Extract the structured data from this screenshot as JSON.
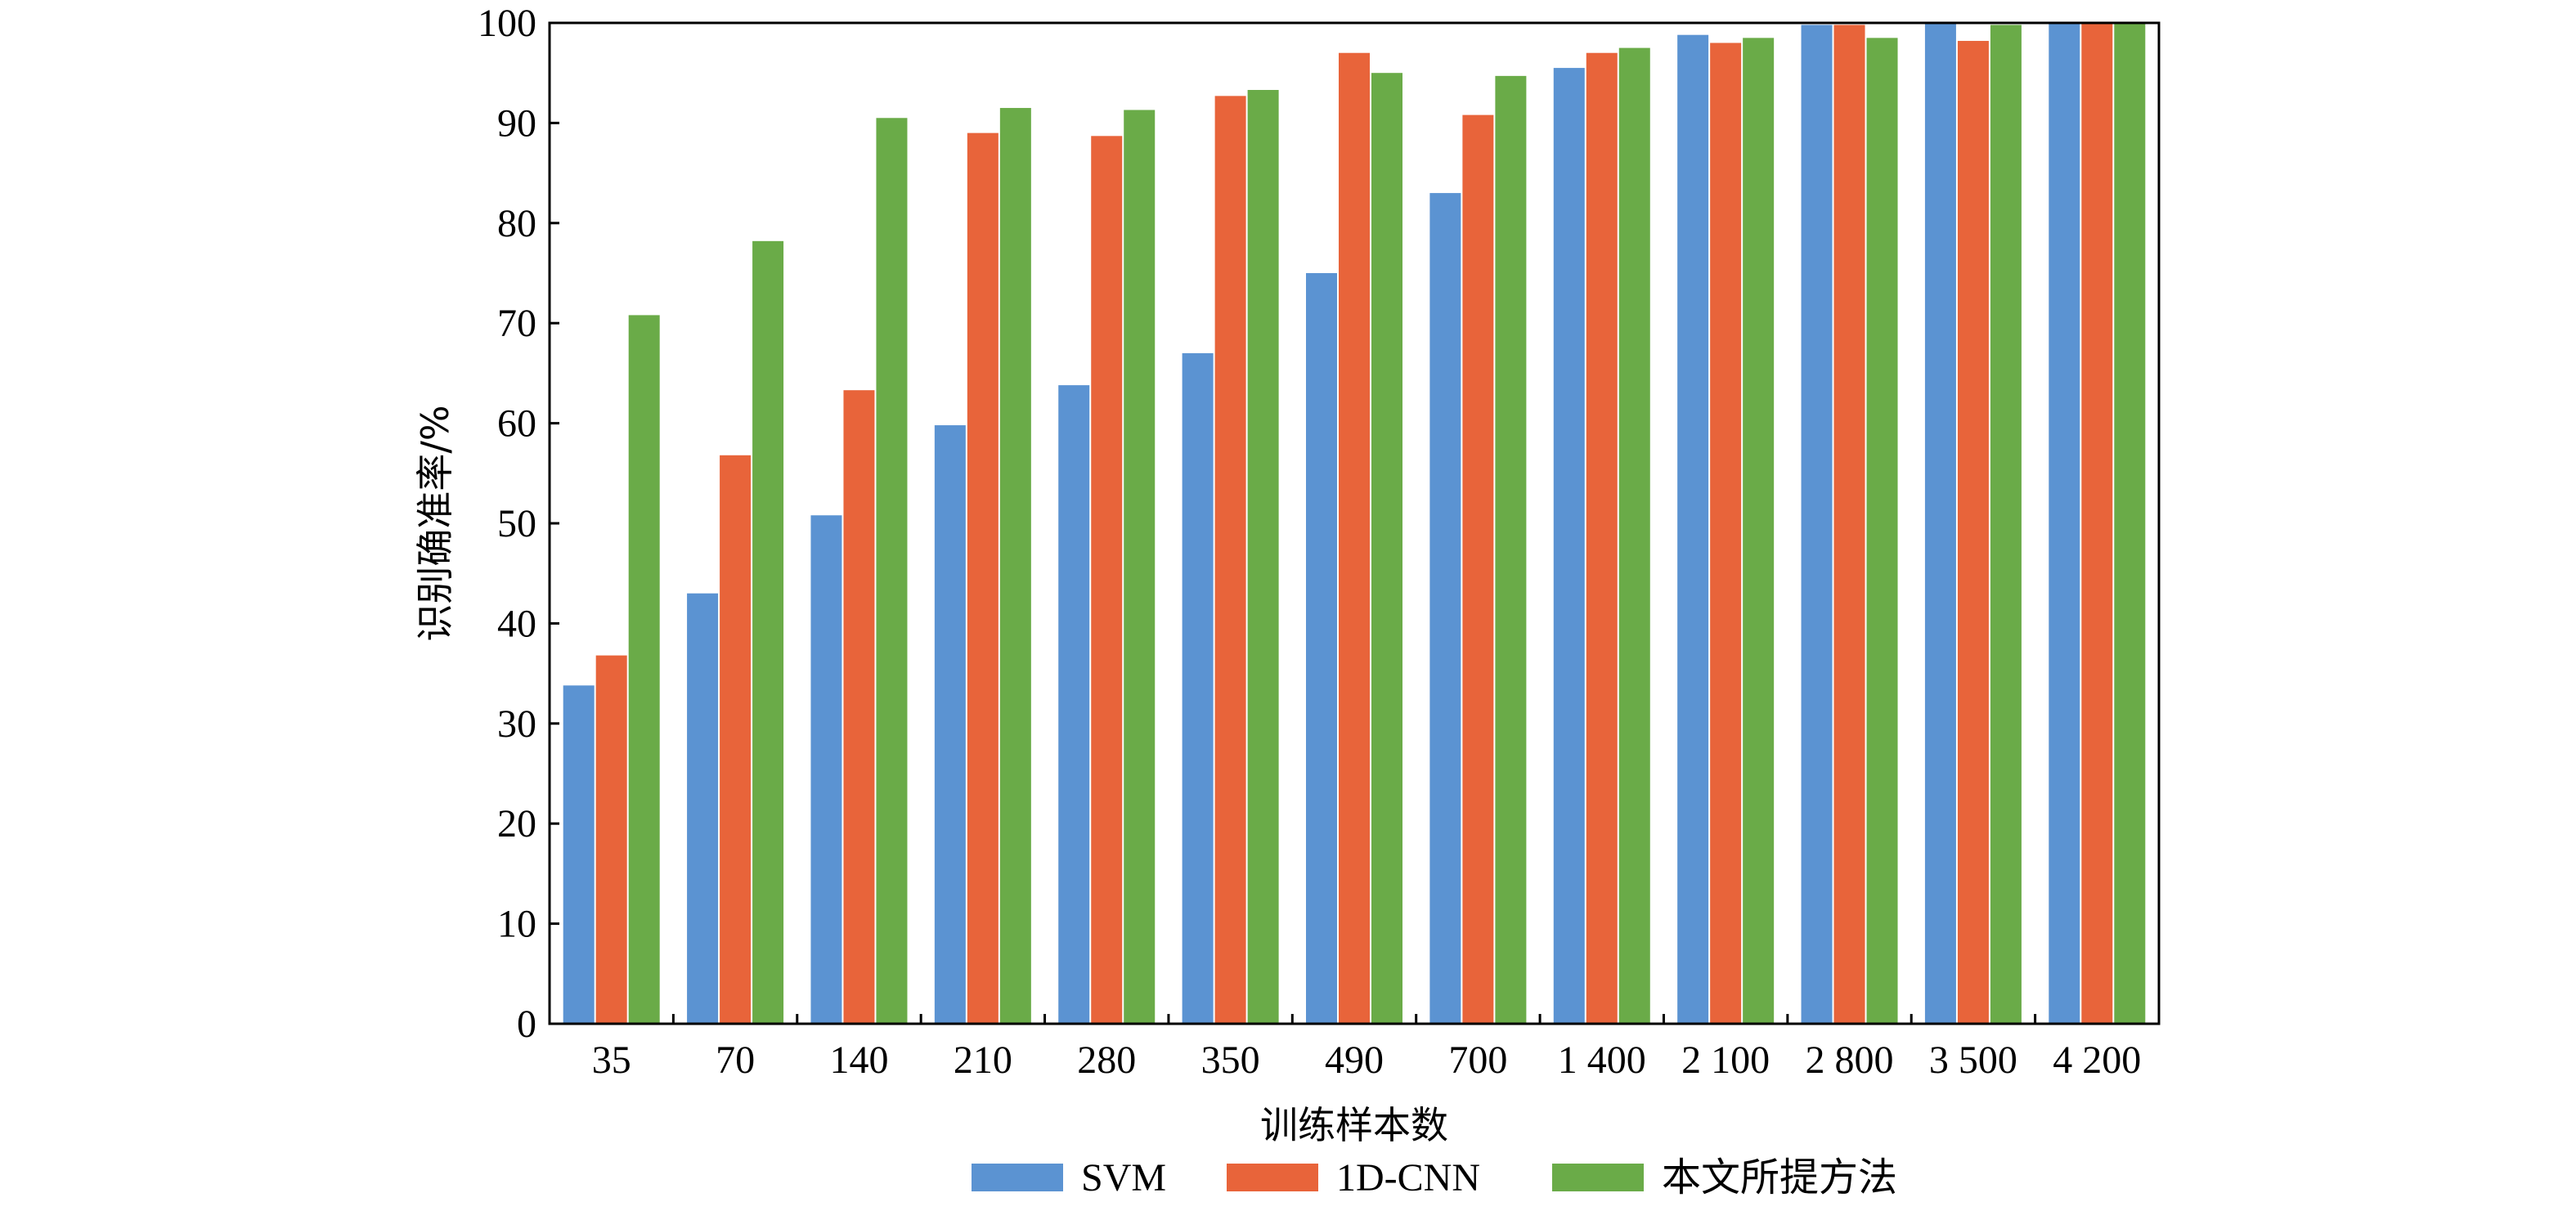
{
  "chart_data": {
    "type": "bar",
    "title": "",
    "xlabel": "训练样本数",
    "ylabel": "识别确准率/%",
    "ylim": [
      0,
      100
    ],
    "yticks": [
      0,
      10,
      20,
      30,
      40,
      50,
      60,
      70,
      80,
      90,
      100
    ],
    "grid": false,
    "legend_position": "bottom",
    "categories": [
      "35",
      "70",
      "140",
      "210",
      "280",
      "350",
      "490",
      "700",
      "1 400",
      "2 100",
      "2 800",
      "3 500",
      "4 200"
    ],
    "series": [
      {
        "name": "SVM",
        "color": "#5B93D2",
        "values": [
          33.8,
          43.0,
          50.8,
          59.8,
          63.8,
          67.0,
          75.0,
          83.0,
          95.5,
          98.8,
          99.8,
          100,
          100
        ]
      },
      {
        "name": "1D-CNN",
        "color": "#E8643A",
        "values": [
          36.8,
          56.8,
          63.3,
          89.0,
          88.7,
          92.7,
          97.0,
          90.8,
          97.0,
          98.0,
          99.8,
          98.2,
          100
        ]
      },
      {
        "name": "本文所提方法",
        "color": "#6AAB48",
        "values": [
          70.8,
          78.2,
          90.5,
          91.5,
          91.3,
          93.3,
          95.0,
          94.7,
          97.5,
          98.5,
          98.5,
          99.8,
          100
        ]
      }
    ]
  }
}
